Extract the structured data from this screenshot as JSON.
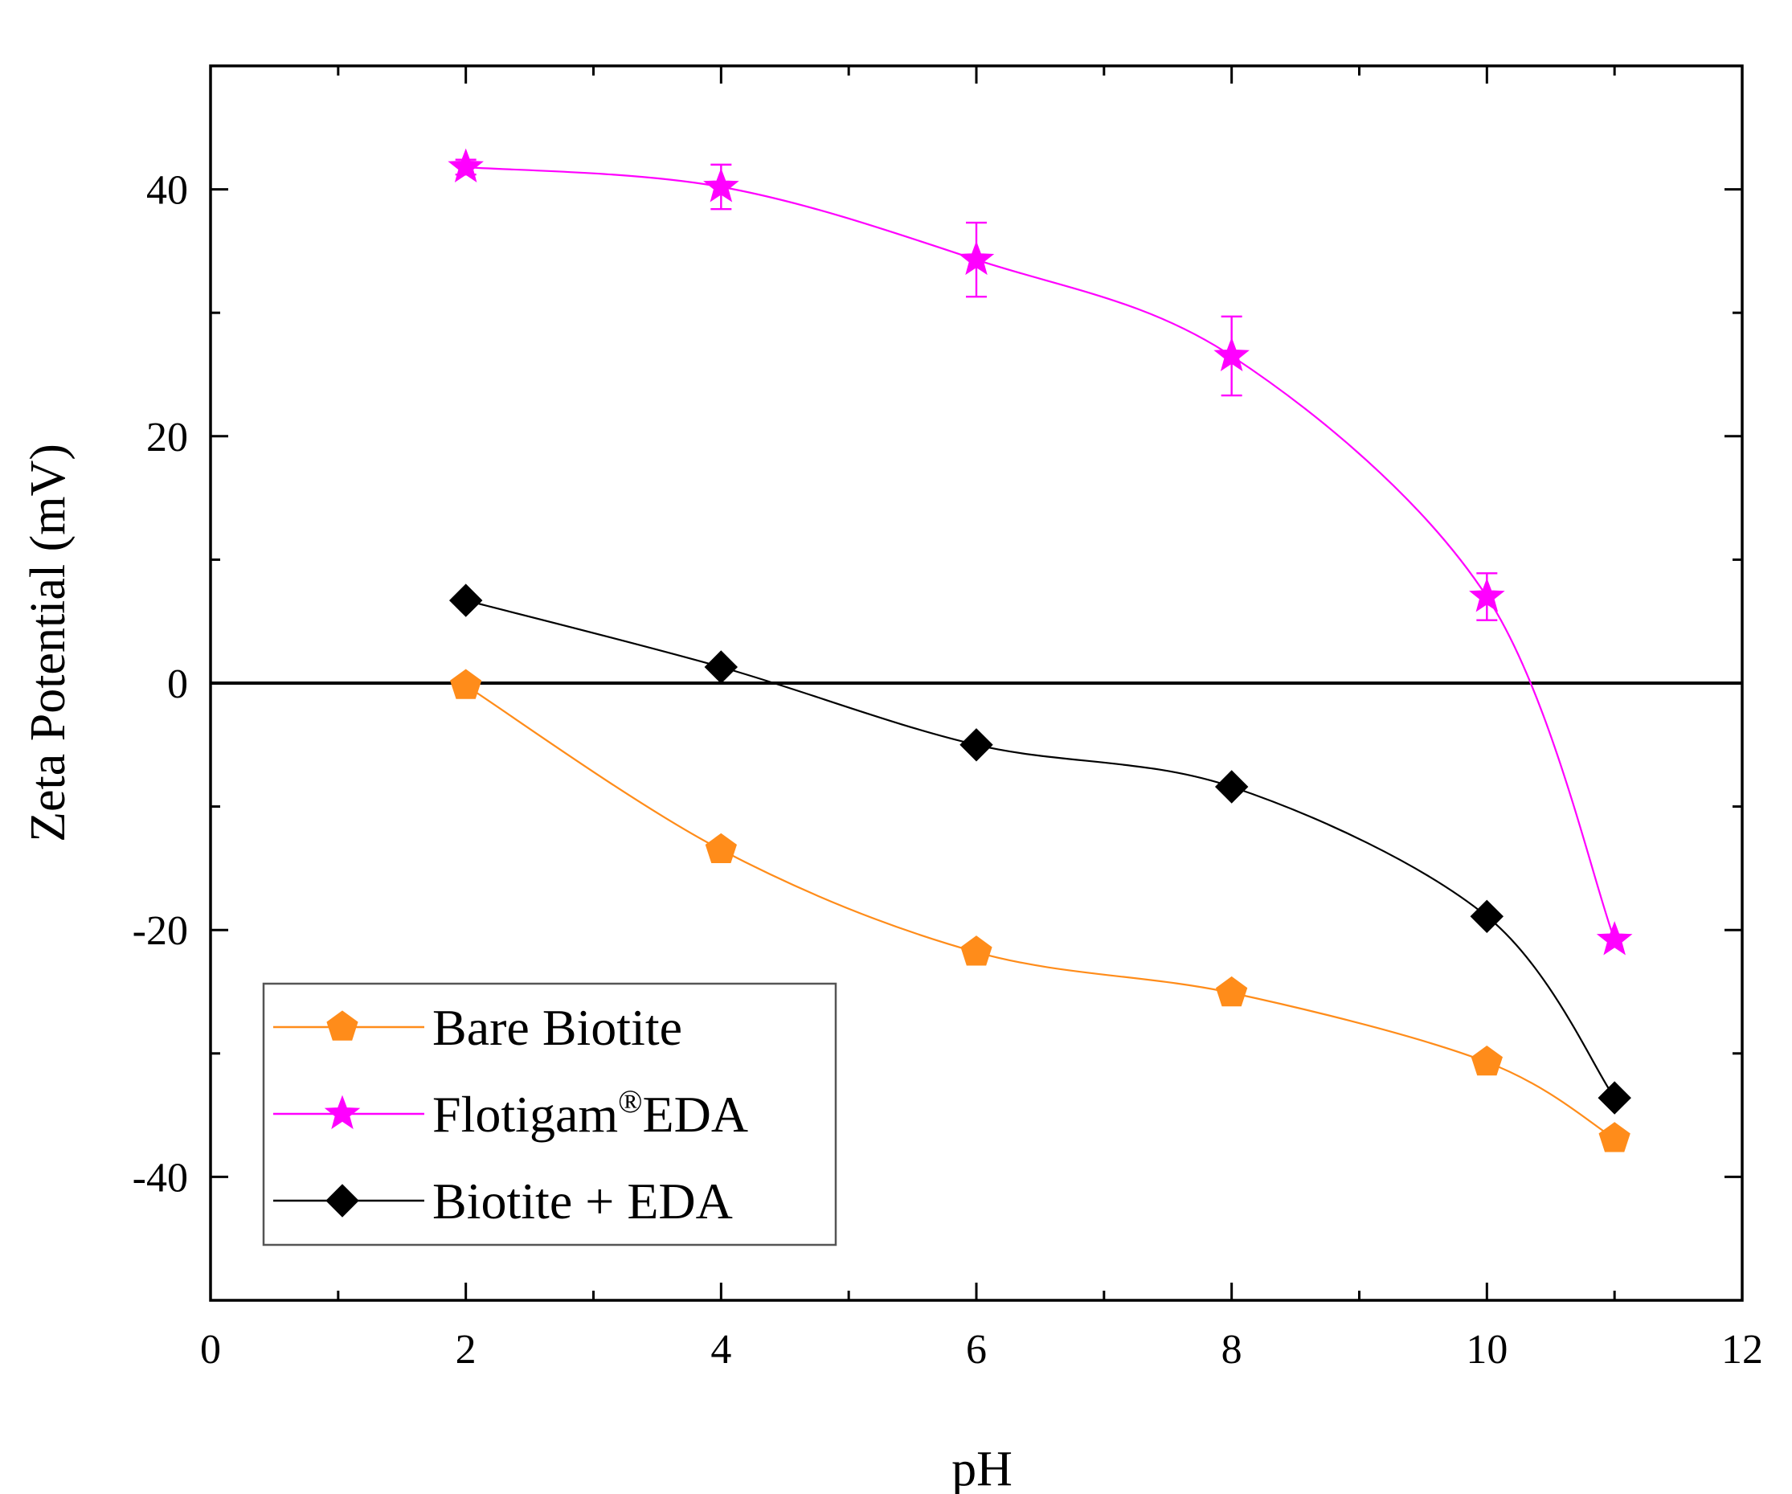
{
  "chart_data": {
    "type": "line",
    "title": "",
    "xlabel": "pH",
    "ylabel": "Zeta Potential (mV)",
    "xlim": [
      0,
      12
    ],
    "ylim": [
      -50,
      50
    ],
    "x_ticks": [
      0,
      2,
      4,
      6,
      8,
      10,
      12
    ],
    "x_tick_labels": [
      "0",
      "2",
      "4",
      "6",
      "8",
      "10",
      "12"
    ],
    "y_ticks": [
      -40,
      -20,
      0,
      20,
      40
    ],
    "y_tick_labels": [
      "-40",
      "-20",
      "0",
      "20",
      "40"
    ],
    "grid": false,
    "zero_line": 0,
    "legend_position": "bottom-left",
    "series": [
      {
        "name": "Bare Biotite",
        "color": "#ff8c1a",
        "marker": "pentagon",
        "x": [
          2,
          4,
          6,
          8,
          10,
          11
        ],
        "y": [
          -0.2,
          -13.5,
          -21.8,
          -25.1,
          -30.7,
          -36.9
        ],
        "error": [
          0,
          0,
          0,
          0,
          0,
          0
        ]
      },
      {
        "name": "Flotigam®EDA",
        "legend_main": "Flotigam",
        "legend_sup": "®",
        "legend_tail": "EDA",
        "color": "#ff00ff",
        "marker": "star",
        "x": [
          2,
          4,
          6,
          8,
          10,
          11
        ],
        "y": [
          41.8,
          40.2,
          34.3,
          26.5,
          7.0,
          -20.8
        ],
        "error": [
          0.6,
          1.8,
          3.0,
          3.2,
          1.9,
          0
        ]
      },
      {
        "name": "Biotite + EDA",
        "color": "#000000",
        "marker": "diamond",
        "x": [
          2,
          4,
          6,
          8,
          10,
          11
        ],
        "y": [
          6.7,
          1.3,
          -5.0,
          -8.4,
          -18.9,
          -33.6
        ],
        "error": [
          0,
          0,
          0,
          0,
          0,
          0
        ]
      }
    ]
  }
}
